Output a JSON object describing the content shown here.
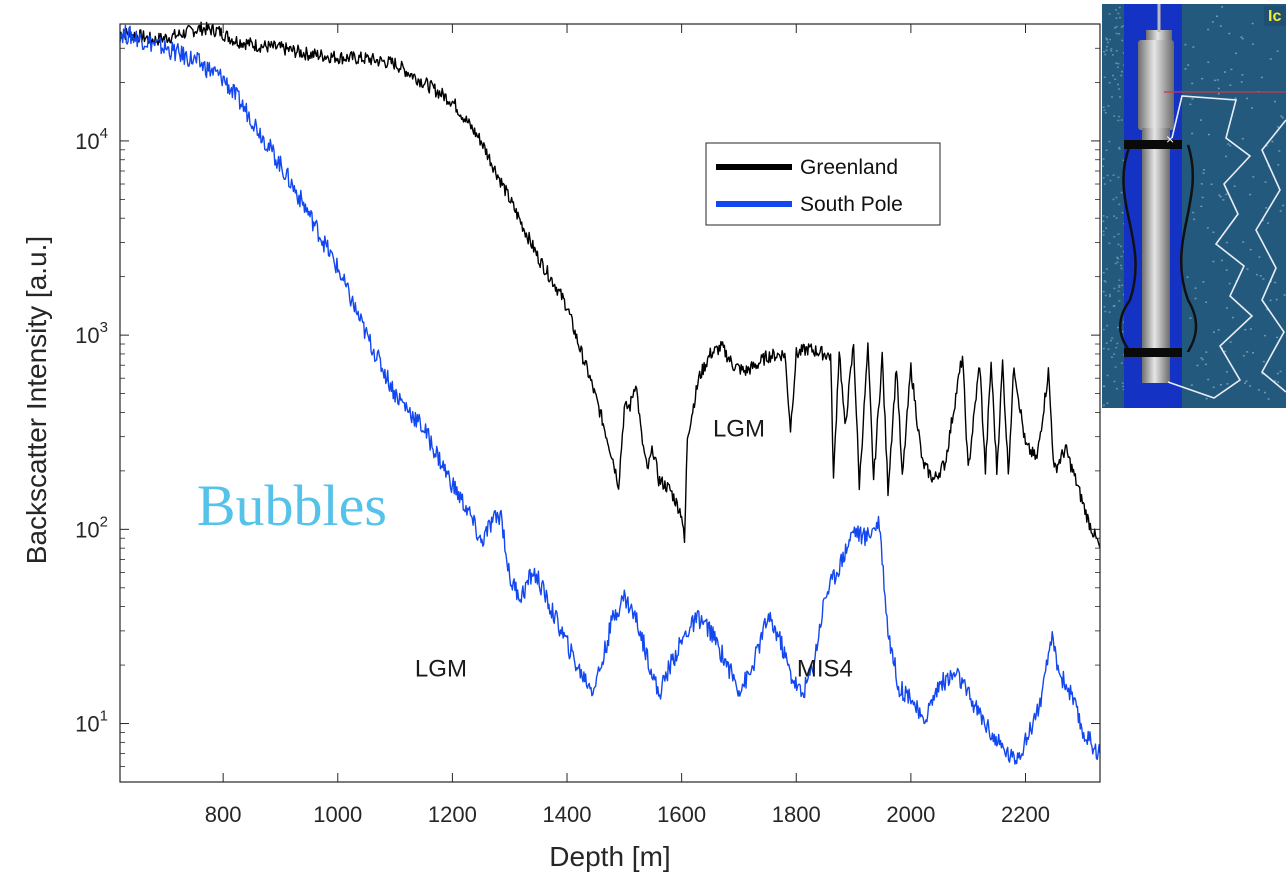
{
  "chart_data": {
    "type": "line",
    "xlabel": "Depth [m]",
    "ylabel": "Backscatter Intensity [a.u.]",
    "xlim": [
      620,
      2330
    ],
    "ylim": [
      5,
      40000
    ],
    "y_scale": "log",
    "grid": false,
    "xticks": [
      800,
      1000,
      1200,
      1400,
      1600,
      1800,
      2000,
      2200
    ],
    "xtick_labels": [
      "800",
      "1000",
      "1200",
      "1400",
      "1600",
      "1800",
      "2000",
      "2200"
    ],
    "yticks": [
      {
        "value": 10,
        "base": "10",
        "exp": "1"
      },
      {
        "value": 100,
        "base": "10",
        "exp": "2"
      },
      {
        "value": 1000,
        "base": "10",
        "exp": "3"
      },
      {
        "value": 10000,
        "base": "10",
        "exp": "4"
      }
    ],
    "legend_position": "upper-right",
    "series": [
      {
        "name": "Greenland",
        "color": "#000000",
        "points": [
          [
            620,
            36000
          ],
          [
            650,
            35000
          ],
          [
            680,
            33000
          ],
          [
            720,
            35000
          ],
          [
            760,
            38000
          ],
          [
            790,
            37000
          ],
          [
            820,
            33000
          ],
          [
            860,
            31000
          ],
          [
            900,
            30000
          ],
          [
            950,
            28000
          ],
          [
            1000,
            27000
          ],
          [
            1050,
            26500
          ],
          [
            1100,
            25000
          ],
          [
            1150,
            20000
          ],
          [
            1200,
            16000
          ],
          [
            1250,
            10000
          ],
          [
            1300,
            5000
          ],
          [
            1350,
            2500
          ],
          [
            1380,
            1800
          ],
          [
            1400,
            1400
          ],
          [
            1420,
            900
          ],
          [
            1440,
            600
          ],
          [
            1460,
            380
          ],
          [
            1480,
            230
          ],
          [
            1490,
            170
          ],
          [
            1500,
            420
          ],
          [
            1510,
            430
          ],
          [
            1520,
            580
          ],
          [
            1530,
            300
          ],
          [
            1540,
            200
          ],
          [
            1550,
            260
          ],
          [
            1560,
            180
          ],
          [
            1580,
            160
          ],
          [
            1600,
            120
          ],
          [
            1605,
            85
          ],
          [
            1610,
            300
          ],
          [
            1630,
            600
          ],
          [
            1650,
            800
          ],
          [
            1670,
            870
          ],
          [
            1690,
            700
          ],
          [
            1710,
            650
          ],
          [
            1730,
            700
          ],
          [
            1750,
            780
          ],
          [
            1780,
            800
          ],
          [
            1790,
            330
          ],
          [
            1800,
            800
          ],
          [
            1820,
            850
          ],
          [
            1840,
            820
          ],
          [
            1860,
            780
          ],
          [
            1865,
            180
          ],
          [
            1875,
            850
          ],
          [
            1885,
            330
          ],
          [
            1900,
            900
          ],
          [
            1910,
            170
          ],
          [
            1925,
            850
          ],
          [
            1935,
            180
          ],
          [
            1950,
            780
          ],
          [
            1960,
            160
          ],
          [
            1975,
            700
          ],
          [
            1985,
            180
          ],
          [
            2000,
            680
          ],
          [
            2020,
            220
          ],
          [
            2040,
            180
          ],
          [
            2060,
            220
          ],
          [
            2080,
            520
          ],
          [
            2090,
            780
          ],
          [
            2100,
            200
          ],
          [
            2120,
            720
          ],
          [
            2130,
            200
          ],
          [
            2140,
            720
          ],
          [
            2150,
            200
          ],
          [
            2160,
            720
          ],
          [
            2170,
            200
          ],
          [
            2180,
            700
          ],
          [
            2200,
            270
          ],
          [
            2220,
            230
          ],
          [
            2240,
            650
          ],
          [
            2250,
            200
          ],
          [
            2270,
            260
          ],
          [
            2290,
            170
          ],
          [
            2310,
            110
          ],
          [
            2330,
            80
          ]
        ]
      },
      {
        "name": "South Pole",
        "color": "#1348f0",
        "points": [
          [
            620,
            36000
          ],
          [
            650,
            34000
          ],
          [
            700,
            30000
          ],
          [
            750,
            26000
          ],
          [
            800,
            21000
          ],
          [
            850,
            13000
          ],
          [
            900,
            7500
          ],
          [
            950,
            4200
          ],
          [
            1000,
            2200
          ],
          [
            1050,
            1000
          ],
          [
            1100,
            500
          ],
          [
            1150,
            330
          ],
          [
            1200,
            170
          ],
          [
            1230,
            120
          ],
          [
            1250,
            85
          ],
          [
            1270,
            110
          ],
          [
            1285,
            120
          ],
          [
            1300,
            55
          ],
          [
            1320,
            45
          ],
          [
            1340,
            60
          ],
          [
            1350,
            55
          ],
          [
            1370,
            40
          ],
          [
            1390,
            30
          ],
          [
            1420,
            19
          ],
          [
            1445,
            15
          ],
          [
            1460,
            20
          ],
          [
            1480,
            35
          ],
          [
            1500,
            45
          ],
          [
            1520,
            35
          ],
          [
            1545,
            20
          ],
          [
            1560,
            14
          ],
          [
            1580,
            20
          ],
          [
            1610,
            30
          ],
          [
            1630,
            35
          ],
          [
            1650,
            30
          ],
          [
            1680,
            20
          ],
          [
            1700,
            15
          ],
          [
            1720,
            18
          ],
          [
            1750,
            35
          ],
          [
            1770,
            28
          ],
          [
            1790,
            18
          ],
          [
            1810,
            14
          ],
          [
            1830,
            20
          ],
          [
            1850,
            45
          ],
          [
            1880,
            70
          ],
          [
            1900,
            100
          ],
          [
            1920,
            90
          ],
          [
            1945,
            110
          ],
          [
            1960,
            30
          ],
          [
            1980,
            15
          ],
          [
            2000,
            14
          ],
          [
            2020,
            10
          ],
          [
            2050,
            16
          ],
          [
            2080,
            18
          ],
          [
            2100,
            14
          ],
          [
            2130,
            10
          ],
          [
            2150,
            8
          ],
          [
            2180,
            6.5
          ],
          [
            2200,
            8
          ],
          [
            2230,
            14
          ],
          [
            2245,
            28
          ],
          [
            2260,
            18
          ],
          [
            2280,
            14
          ],
          [
            2300,
            9
          ],
          [
            2330,
            7
          ]
        ]
      }
    ],
    "annotations": [
      {
        "text": "LGM",
        "x": 1700,
        "y": 300
      },
      {
        "text": "LGM",
        "x": 1180,
        "y": 17.5
      },
      {
        "text": "MIS4",
        "x": 1850,
        "y": 17.5
      },
      {
        "text": "Bubbles",
        "x": 920,
        "y": 105
      }
    ]
  },
  "inset": {
    "label": "Ic",
    "background_color": "#24597e",
    "borehole_color": "#1433c4"
  }
}
